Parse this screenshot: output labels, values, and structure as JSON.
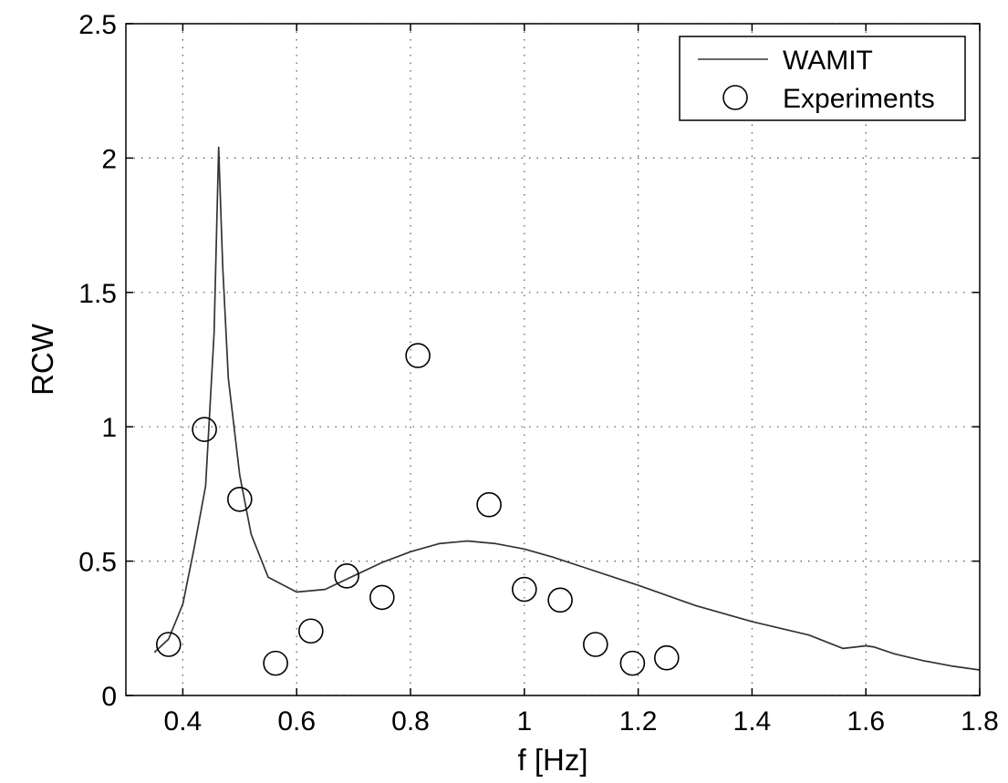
{
  "chart_data": {
    "type": "line",
    "xlabel": "f [Hz]",
    "ylabel": "RCW",
    "xlim": [
      0.3,
      1.8
    ],
    "ylim": [
      0,
      2.5
    ],
    "x_ticks": [
      "0.4",
      "0.6",
      "0.8",
      "1",
      "1.2",
      "1.4",
      "1.6",
      "1.8"
    ],
    "y_ticks": [
      "0",
      "0.5",
      "1",
      "1.5",
      "2",
      "2.5"
    ],
    "grid": true,
    "legend_position": "top-right",
    "line_color": "#333333",
    "marker_color": "#000000",
    "series": [
      {
        "name": "WAMIT",
        "kind": "line",
        "x": [
          0.35,
          0.375,
          0.4,
          0.42,
          0.44,
          0.455,
          0.463,
          0.47,
          0.48,
          0.5,
          0.52,
          0.55,
          0.6,
          0.65,
          0.7,
          0.75,
          0.8,
          0.85,
          0.9,
          0.95,
          1.0,
          1.05,
          1.1,
          1.15,
          1.2,
          1.3,
          1.4,
          1.5,
          1.56,
          1.6,
          1.615,
          1.65,
          1.7,
          1.75,
          1.8
        ],
        "y": [
          0.16,
          0.21,
          0.34,
          0.55,
          0.78,
          1.35,
          2.04,
          1.6,
          1.18,
          0.82,
          0.6,
          0.44,
          0.385,
          0.395,
          0.445,
          0.495,
          0.535,
          0.565,
          0.575,
          0.565,
          0.545,
          0.515,
          0.48,
          0.445,
          0.41,
          0.335,
          0.275,
          0.225,
          0.175,
          0.185,
          0.18,
          0.155,
          0.13,
          0.11,
          0.095
        ]
      },
      {
        "name": "Experiments",
        "kind": "scatter",
        "x": [
          0.375,
          0.438,
          0.5,
          0.563,
          0.625,
          0.688,
          0.75,
          0.813,
          0.938,
          1.0,
          1.063,
          1.125,
          1.19,
          1.25
        ],
        "y": [
          0.19,
          0.99,
          0.73,
          0.12,
          0.24,
          0.445,
          0.365,
          1.265,
          0.71,
          0.395,
          0.355,
          0.19,
          0.12,
          0.14
        ]
      }
    ]
  }
}
